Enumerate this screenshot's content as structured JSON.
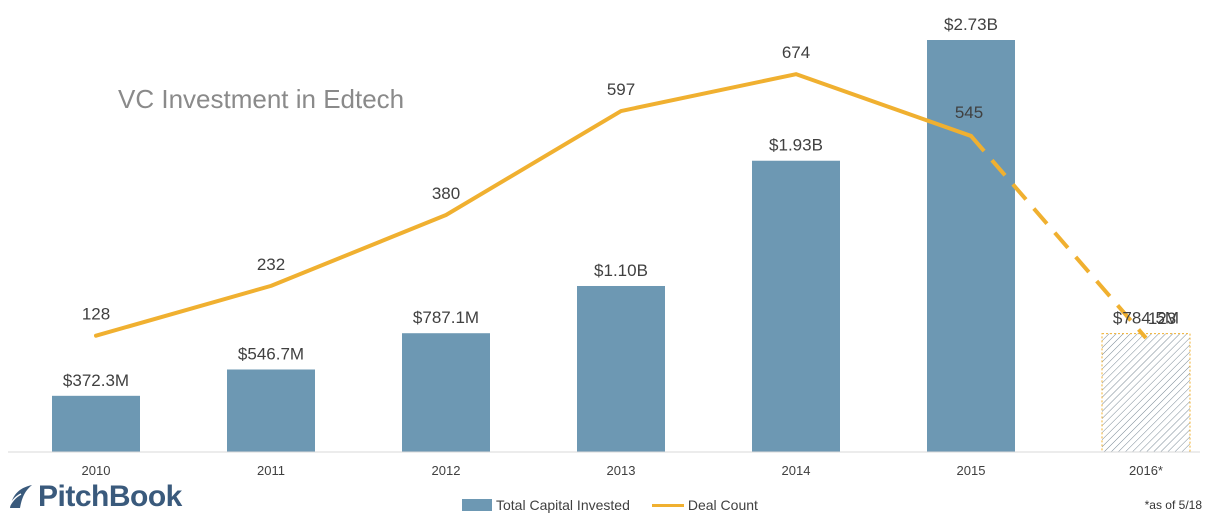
{
  "chart_data": {
    "type": "bar",
    "title": "VC Investment in Edtech",
    "categories": [
      "2010",
      "2011",
      "2012",
      "2013",
      "2014",
      "2015",
      "2016*"
    ],
    "series": [
      {
        "name": "Total Capital Invested",
        "type": "bar",
        "values": [
          372.3,
          546.7,
          787.1,
          1100,
          1930,
          2730,
          784.5
        ],
        "unit": "$M",
        "labels": [
          "$372.3M",
          "$546.7M",
          "$787.1M",
          "$1.10B",
          "$1.93B",
          "$2.73B",
          "$784.5M"
        ],
        "color": "#6d98b3",
        "partial_last": true
      },
      {
        "name": "Deal Count",
        "type": "line",
        "values": [
          128,
          232,
          380,
          597,
          674,
          545,
          123
        ],
        "labels": [
          "128",
          "232",
          "380",
          "597",
          "674",
          "545",
          "123"
        ],
        "color": "#f0b030",
        "dashed_from_index": 5
      }
    ],
    "legend_position": "bottom",
    "grid": false
  },
  "brand": {
    "name": "PitchBook"
  },
  "footnote": "*as of 5/18",
  "colors": {
    "bar": "#6d98b3",
    "line": "#f0b030",
    "title": "#8a8a8a",
    "brand": "#3a5a7c"
  }
}
